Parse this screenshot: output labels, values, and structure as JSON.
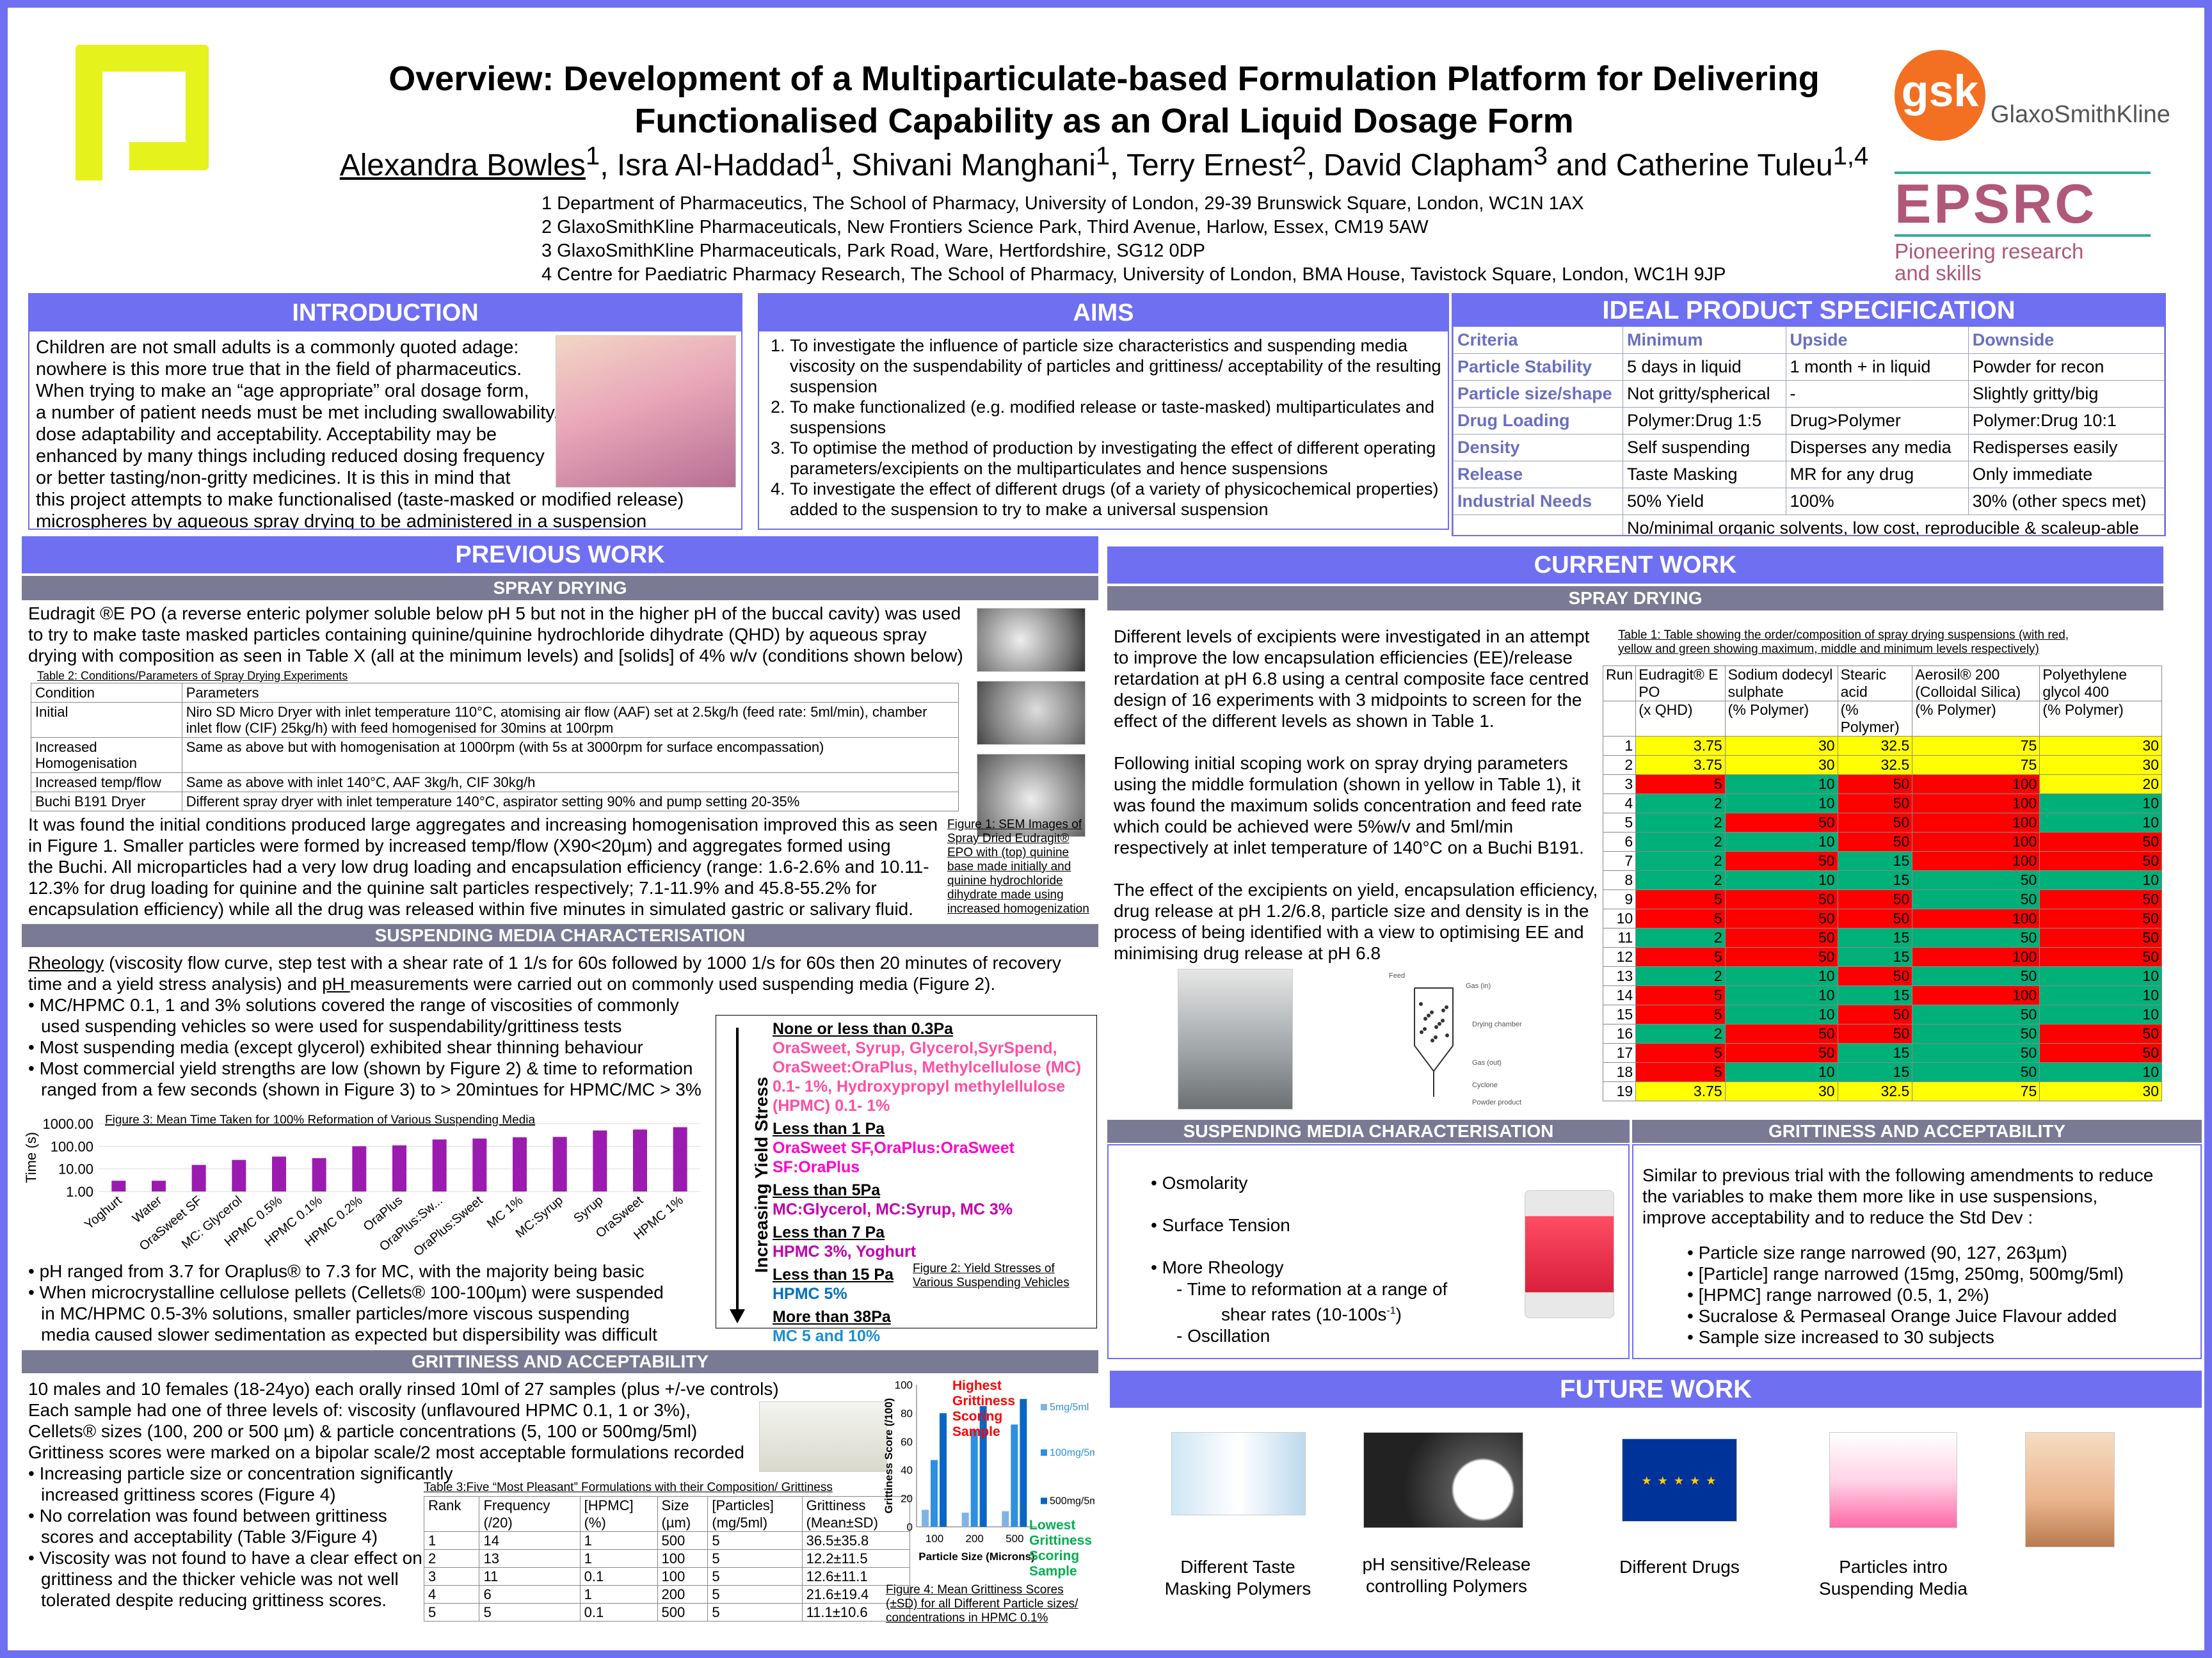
{
  "header": {
    "title_line1": "Overview: Development of a Multiparticulate-based Formulation Platform for Delivering",
    "title_line2": "Functionalised Capability as an Oral Liquid Dosage Form",
    "authors": [
      {
        "name": "Alexandra Bowles",
        "sup": "1"
      },
      {
        "name": "Isra Al-Haddad",
        "sup": "1"
      },
      {
        "name": "Shivani  Manghani",
        "sup": "1"
      },
      {
        "name": "Terry Ernest",
        "sup": "2"
      },
      {
        "name": "David Clapham",
        "sup": "3"
      },
      {
        "name": "Catherine Tuleu",
        "sup": "1,4"
      }
    ],
    "author_sep": ",  ",
    "author_and": " and ",
    "affiliations": [
      "1 Department of Pharmaceutics, The School of Pharmacy, University of London, 29-39 Brunswick Square, London, WC1N 1AX",
      "2 GlaxoSmithKline Pharmaceuticals, New Frontiers Science Park, Third Avenue, Harlow, Essex, CM19 5AW",
      "3 GlaxoSmithKline Pharmaceuticals, Park Road, Ware, Hertfordshire, SG12 0DP",
      "4 Centre for Paediatric Pharmacy Research, The School of Pharmacy, University of London, BMA House, Tavistock Square, London, WC1H 9JP"
    ],
    "gsk_mark": "gsk",
    "gsk_text": "GlaxoSmithKline",
    "epsrc_mark": "EPSRC",
    "epsrc_sub1": "Pioneering research",
    "epsrc_sub2": "and skills"
  },
  "intro": {
    "heading": "INTRODUCTION",
    "lines": [
      "Children are not small adults is a commonly quoted adage:",
      "nowhere is this more true that in the field of pharmaceutics.",
      "When trying to make an “age appropriate” oral dosage form,",
      "a number of patient needs must be met including swallowability,",
      "dose adaptability and acceptability.  Acceptability may be",
      "enhanced by many things including reduced dosing frequency",
      "or better tasting/non-gritty medicines. It is this in mind that",
      "this project attempts to make functionalised (taste-masked or modified release)",
      "microspheres by aqueous spray drying to be administered in a suspension fomulation"
    ]
  },
  "aims": {
    "heading": "AIMS",
    "items": [
      "To investigate the influence of particle size characteristics and suspending media viscosity on the suspendability of  particles and grittiness/ acceptability of the resulting suspension",
      "To make functionalized (e.g. modified release or taste-masked) multiparticulates and suspensions",
      "To optimise the method of production by investigating the effect of different operating parameters/excipients on the multiparticulates and hence suspensions",
      "To investigate the effect of different drugs (of a variety of physicochemical properties) added to the suspension to try to make a universal suspension"
    ]
  },
  "spec": {
    "heading": "IDEAL PRODUCT SPECIFICATION",
    "header": [
      "Criteria",
      "Minimum",
      "Upside",
      "Downside"
    ],
    "rows": [
      [
        "Particle Stability",
        "5 days in liquid",
        "1 month + in liquid",
        "Powder for recon"
      ],
      [
        "Particle size/shape",
        "Not gritty/spherical",
        "-",
        "Slightly gritty/big"
      ],
      [
        "Drug Loading",
        "Polymer:Drug 1:5",
        "Drug>Polymer",
        "Polymer:Drug 10:1"
      ],
      [
        "Density",
        "Self suspending",
        "Disperses any media",
        "Redisperses easily"
      ],
      [
        "Release",
        "Taste Masking",
        "MR for any drug",
        "Only immediate"
      ],
      [
        "Industrial Needs",
        "50% Yield",
        "100%",
        "30% (other specs met)"
      ]
    ],
    "footer": "No/minimal organic solvents, low cost, reproducible & scaleup-able"
  },
  "prev": {
    "heading": "PREVIOUS WORK",
    "spray_heading": "SPRAY DRYING",
    "spray_para": [
      "Eudragit ®E PO (a reverse enteric polymer soluble below pH 5 but not in the higher pH of the buccal cavity) was used",
      "to try to make taste masked particles containing quinine/quinine hydrochloride dihydrate (QHD) by aqueous spray",
      "drying with composition as seen in Table X (all at the minimum levels) and [solids] of 4% w/v (conditions shown below)"
    ],
    "table2_caption": "Table 2: Conditions/Parameters of Spray Drying Experiments",
    "table2_header": [
      "Condition",
      "Parameters"
    ],
    "table2_rows": [
      [
        "Initial",
        "Niro SD Micro Dryer with inlet temperature 110°C, atomising air flow (AAF) set at 2.5kg/h (feed rate: 5ml/min), chamber inlet flow (CIF) 25kg/h) with feed homogenised for 30mins at 100rpm"
      ],
      [
        "Increased Homogenisation",
        "Same as above but with homogenisation at 1000rpm (with 5s at 3000rpm for surface encompassation)"
      ],
      [
        "Increased temp/flow",
        "Same as above with inlet 140°C, AAF 3kg/h, CIF 30kg/h"
      ],
      [
        "Buchi B191 Dryer",
        "Different spray dryer with inlet temperature 140°C, aspirator setting 90% and pump setting 20-35%"
      ]
    ],
    "spray_para2": [
      "It was found the initial conditions produced large aggregates and increasing homogenisation improved this as seen",
      "in Figure 1. Smaller particles were formed by increased temp/flow (X90<20µm) and aggregates formed using",
      "the Buchi. All microparticles had a very low drug loading and encapsulation efficiency (range: 1.6-2.6% and 10.11-",
      "12.3% for drug loading for quinine and the quinine salt particles respectively; 7.1-11.9% and 45.8-55.2% for",
      "encapsulation efficiency)  while all the drug was released within five minutes in simulated gastric or salivary fluid."
    ],
    "fig1_caption": "Figure 1: SEM Images of Spray Dried Eudragit® EPO with (top) quinine base  made initially and quinine hydrochloride dihydrate made using increased homogenization",
    "susp_heading": "SUSPENDING MEDIA CHARACTERISATION",
    "susp_line1a": "Rheology",
    "susp_line1b": " (viscosity flow curve, step test with a shear rate of 1 1/s for 60s followed by 1000 1/s for 60s then 20 minutes of recovery",
    "susp_line2a": "time and a yield stress analysis) and ",
    "susp_line2b": "pH ",
    "susp_line2c": "measurements were carried out on commonly used suspending media (Figure 2).",
    "susp_bullets": [
      "MC/HPMC 0.1, 1 and 3% solutions covered the range of viscosities of commonly",
      "Most suspending media (except glycerol) exhibited shear thinning behaviour",
      "Most commercial yield strengths are low (shown by Figure 2) & time to reformation"
    ],
    "susp_cont1": "used suspending vehicles so were used for suspendability/grittiness tests",
    "susp_cont3": "ranged from a few seconds (shown in Figure 3) to > 20mintues for HPMC/MC > 3%",
    "susp_bullets2": [
      "pH ranged from 3.7 for Oraplus® to 7.3 for MC, with the majority being basic",
      "When microcrystalline cellulose pellets (Cellets® 100-100µm) were suspended"
    ],
    "susp_cont5a": "in MC/HPMC 0.5-3% solutions, smaller particles/more viscous suspending",
    "susp_cont5b": "media caused slower sedimentation as expected but dispersibility was difficult",
    "yield_axis": "Increasing Yield Stress",
    "yield_groups": [
      {
        "h": "None or less than 0.3Pa",
        "t": "OraSweet, Syrup, Glycerol,SyrSpend, OraSweet:OraPlus, Methylcellulose (MC) 0.1- 1%, Hydroxypropyl methylellulose (HPMC) 0.1- 1%",
        "c": "c1"
      },
      {
        "h": "Less than 1 Pa",
        "t": "OraSweet SF,OraPlus:OraSweet SF:OraPlus",
        "c": "c2"
      },
      {
        "h": "Less than 5Pa",
        "t": "MC:Glycerol, MC:Syrup, MC 3%",
        "c": "c3"
      },
      {
        "h": "Less than 7 Pa",
        "t": "HPMC 3%, Yoghurt",
        "c": "c3"
      },
      {
        "h": "Less than 15 Pa",
        "t": "HPMC 5%",
        "c": "c4"
      },
      {
        "h": "More than 38Pa",
        "t": "MC 5 and 10%",
        "c": "c5"
      }
    ],
    "fig2_caption": "Figure 2: Yield Stresses of Various Suspending Vehicles",
    "grit_heading": "GRITTINESS AND ACCEPTABILITY",
    "grit_lines": [
      "10 males and 10 females (18-24yo) each orally rinsed 10ml of 27 samples  (plus +/-ve controls)",
      "Each sample had one of three levels of: viscosity (unflavoured HPMC 0.1, 1 or 3%),",
      "Cellets® sizes (100, 200 or 500 µm) & particle concentrations (5, 100 or 500mg/5ml)",
      "Grittiness scores were marked on a bipolar scale/2 most acceptable formulations recorded"
    ],
    "grit_bullets": [
      [
        "Increasing particle  size or concentration significantly",
        "increased grittiness scores (Figure 4)"
      ],
      [
        "No correlation was found between grittiness",
        "scores and acceptability (Table 3/Figure 4)"
      ],
      [
        "Viscosity was not found to have a clear effect on",
        "grittiness and the thicker vehicle was not well",
        "tolerated despite reducing grittiness scores."
      ]
    ],
    "table3_caption": "Table 3:Five “Most Pleasant” Formulations with their Composition/ Grittiness",
    "table3_header": [
      [
        "Rank",
        ""
      ],
      [
        "Frequency",
        "(/20)"
      ],
      [
        "[HPMC]",
        "(%)"
      ],
      [
        "Size",
        "(µm)"
      ],
      [
        "[Particles]",
        "(mg/5ml)"
      ],
      [
        "Grittiness",
        "(Mean±SD)"
      ]
    ],
    "table3_rows": [
      [
        "1",
        "14",
        "1",
        "500",
        "5",
        "36.5±35.8"
      ],
      [
        "2",
        "13",
        "1",
        "100",
        "5",
        "12.2±11.5"
      ],
      [
        "3",
        "11",
        "0.1",
        "100",
        "5",
        "12.6±11.1"
      ],
      [
        "4",
        "6",
        "1",
        "200",
        "5",
        "21.6±19.4"
      ],
      [
        "5",
        "5",
        "0.1",
        "500",
        "5",
        "11.1±10.6"
      ]
    ],
    "fig4_caption": "Figure 4:  Mean Grittiness Scores (±SD) for all Different Particle sizes/ concentrations in HPMC 0.1%",
    "fig4_high": "Highest Grittiness Scoring Sample",
    "fig4_low": "Lowest Grittiness Scoring Sample"
  },
  "curr": {
    "heading": "CURRENT WORK",
    "spray_heading": "SPRAY DRYING",
    "para1": [
      "Different levels of excipients were investigated in an attempt",
      "to improve the low encapsulation efficiencies (EE)/release",
      "retardation at pH 6.8 using a central composite face centred",
      "design of 16 experiments with 3 midpoints to screen for the",
      "effect of the different levels as shown in Table 1."
    ],
    "para2": [
      "Following initial scoping work on spray drying parameters",
      "using the middle formulation (shown in yellow in Table 1), it",
      "was found the maximum solids concentration  and feed rate",
      "which could be achieved were 5%w/v and 5ml/min",
      "respectively at inlet temperature of 140°C on a Buchi B191."
    ],
    "para3": [
      "The effect of the excipients on yield, encapsulation efficiency,",
      "drug release at pH 1.2/6.8, particle size and density is in the",
      "process of being identified with a view to optimising EE and",
      "minimising drug release at pH 6.8"
    ],
    "table1_caption": "Table 1: Table showing the order/composition of spray drying suspensions (with red, yellow and  green showing maximum, middle and minimum levels respectively)",
    "table1_header": [
      "Run",
      "Eudragit® E PO",
      "Sodium dodecyl sulphate",
      "Stearic acid",
      "Aerosil® 200 (Colloidal Silica)",
      "Polyethylene glycol 400"
    ],
    "table1_units": [
      "",
      "(x QHD)",
      "(% Polymer)",
      "(% Polymer)",
      "(% Polymer)",
      "(% Polymer)"
    ],
    "table1_rows": [
      [
        "1",
        "3.75",
        "30",
        "32.5",
        "75",
        "30"
      ],
      [
        "2",
        "3.75",
        "30",
        "32.5",
        "75",
        "30"
      ],
      [
        "3",
        "5",
        "10",
        "50",
        "100",
        "20"
      ],
      [
        "4",
        "2",
        "10",
        "50",
        "100",
        "10"
      ],
      [
        "5",
        "2",
        "50",
        "50",
        "100",
        "10"
      ],
      [
        "6",
        "2",
        "10",
        "50",
        "100",
        "50"
      ],
      [
        "7",
        "2",
        "50",
        "15",
        "100",
        "50"
      ],
      [
        "8",
        "2",
        "10",
        "15",
        "50",
        "10"
      ],
      [
        "9",
        "5",
        "50",
        "50",
        "50",
        "50"
      ],
      [
        "10",
        "5",
        "50",
        "50",
        "100",
        "50"
      ],
      [
        "11",
        "2",
        "50",
        "15",
        "50",
        "50"
      ],
      [
        "12",
        "5",
        "50",
        "15",
        "100",
        "50"
      ],
      [
        "13",
        "2",
        "10",
        "50",
        "50",
        "10"
      ],
      [
        "14",
        "5",
        "10",
        "15",
        "100",
        "10"
      ],
      [
        "15",
        "5",
        "10",
        "50",
        "50",
        "10"
      ],
      [
        "16",
        "2",
        "50",
        "50",
        "50",
        "50"
      ],
      [
        "17",
        "5",
        "50",
        "15",
        "50",
        "50"
      ],
      [
        "18",
        "5",
        "10",
        "15",
        "50",
        "10"
      ],
      [
        "19",
        "3.75",
        "30",
        "32.5",
        "75",
        "30"
      ]
    ],
    "dryer_labels": [
      "Feed",
      "Gas (in)",
      "Drying chamber",
      "Gas (out)",
      "Cyclone",
      "Powder product"
    ],
    "susp_heading": "SUSPENDING MEDIA CHARACTERISATION",
    "susp_items": [
      "Osmolarity",
      "Surface Tension",
      "More Rheology"
    ],
    "susp_sub1a": "Time to reformation at a range of",
    "susp_sub1b": "shear rates (10-100s",
    "susp_sub1c": "-1",
    "susp_sub1d": ")",
    "susp_sub2": "Oscillation",
    "grit_heading": "GRITTINESS AND ACCEPTABILITY",
    "grit_lines": [
      "Similar to previous trial with the following amendments to reduce",
      "the variables to make them more like in use suspensions,",
      "improve acceptability  and to reduce the Std Dev :"
    ],
    "grit_bullets": [
      "Particle size range narrowed (90, 127, 263µm)",
      "[Particle] range narrowed (15mg, 250mg, 500mg/5ml)",
      "[HPMC] range narrowed (0.5, 1, 2%)",
      "Sucralose & Permaseal Orange Juice Flavour added",
      "Sample size increased to 30 subjects"
    ]
  },
  "future": {
    "heading": "FUTURE WORK",
    "items": [
      [
        "Different Taste",
        "Masking Polymers"
      ],
      [
        "pH sensitive/Release",
        "controlling Polymers"
      ],
      [
        "Different Drugs",
        ""
      ],
      [
        "Particles intro",
        "Suspending Media"
      ]
    ]
  },
  "colors": {
    "accent": "#6f6ff2",
    "subhead": "#7a7a94",
    "bar": "#9b1bb0",
    "high": "#ff0000",
    "mid": "#ffff00",
    "low": "#00b079"
  },
  "chart_data": [
    {
      "type": "bar",
      "title": "Figure 3: Mean Time Taken for 100% Reformation of Various Suspending Media",
      "ylabel": "Time (s)",
      "yscale": "log",
      "ylim": [
        1,
        1000
      ],
      "yticks": [
        "1000.00",
        "100.00",
        "10.00",
        "1.00"
      ],
      "categories": [
        "Yoghurt",
        "Water",
        "OraSweet SF",
        "MC: Glycerol",
        "HPMC 0.5%",
        "HPMC 0.1%",
        "HPMC 0.2%",
        "OraPlus",
        "OraPlus:Sw...",
        "OraPlus:Sweet",
        "MC 1%",
        "MC:Syrup",
        "Syrup",
        "OraSweet",
        "HPMC 1%"
      ],
      "values": [
        3,
        3,
        15,
        25,
        35,
        30,
        100,
        110,
        200,
        220,
        250,
        260,
        500,
        550,
        700
      ]
    },
    {
      "type": "bar",
      "title": "",
      "xlabel": "Particle Size (Microns)",
      "ylabel": "Grittiness Score (/100)",
      "ylim": [
        0,
        100
      ],
      "yticks": [
        "100",
        "80",
        "60",
        "40",
        "20",
        "0"
      ],
      "categories": [
        "100",
        "200",
        "500"
      ],
      "series": [
        {
          "name": "5mg/5ml",
          "values": [
            12,
            10,
            11
          ]
        },
        {
          "name": "100mg/5ml",
          "values": [
            47,
            68,
            72
          ]
        },
        {
          "name": "500mg/5ml",
          "values": [
            80,
            85,
            90
          ]
        }
      ]
    }
  ]
}
